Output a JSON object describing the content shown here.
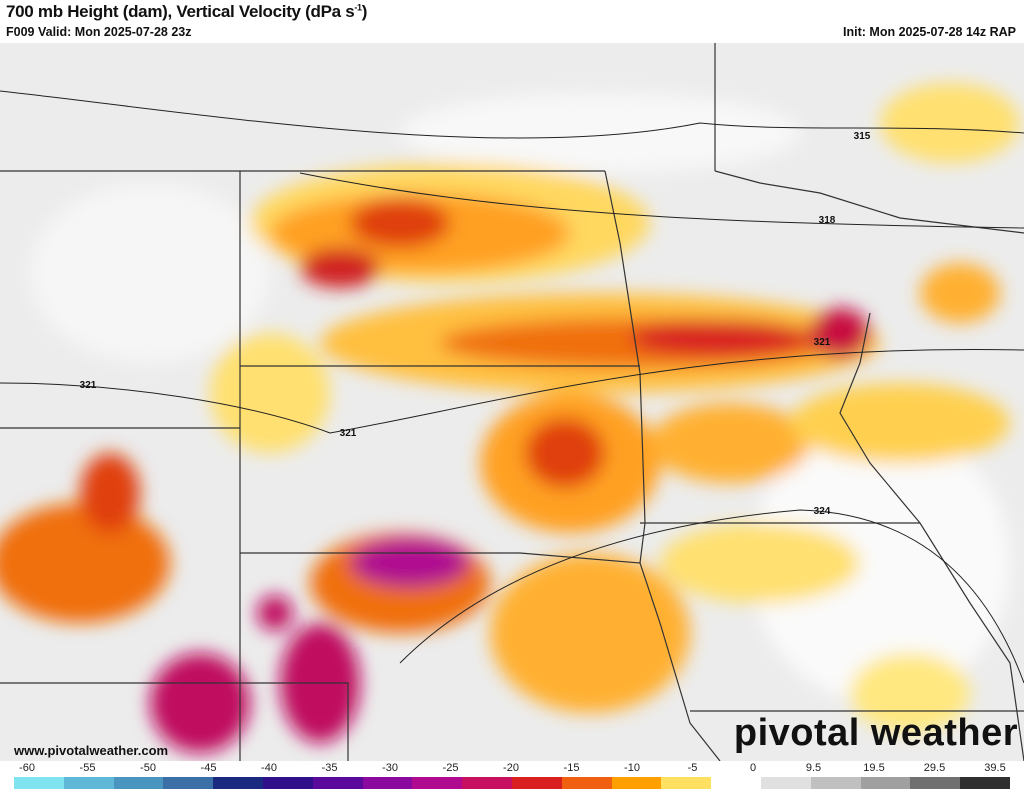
{
  "header": {
    "title": "700 mb Height (dam), Vertical Velocity (dPa s",
    "title_sup": "-1",
    "title_end": ")",
    "valid": "F009 Valid: Mon 2025-07-28 23z",
    "init": "Init: Mon 2025-07-28 14z RAP"
  },
  "map": {
    "contour_labels": [
      "315",
      "318",
      "321",
      "321",
      "321",
      "324"
    ]
  },
  "footer": {
    "website": "www.pivotalweather.com",
    "brand": "pivotal weather"
  },
  "colorbar": {
    "labels": [
      "-60",
      "-55",
      "-50",
      "-45",
      "-40",
      "-35",
      "-30",
      "-25",
      "-20",
      "-15",
      "-10",
      "-5",
      "0",
      "9.5",
      "19.5",
      "29.5",
      "39.5"
    ],
    "colors": [
      "#7fe3f0",
      "#5fb8d8",
      "#4a95c0",
      "#3a6fa8",
      "#1a2a80",
      "#30108a",
      "#5a0a9a",
      "#8a0aa0",
      "#b00a90",
      "#c81060",
      "#d82020",
      "#f06010",
      "#ffa000",
      "#ffe060",
      "#ffffff",
      "#e0e0e0",
      "#c0c0c0",
      "#a0a0a0",
      "#707070",
      "#303030"
    ]
  }
}
